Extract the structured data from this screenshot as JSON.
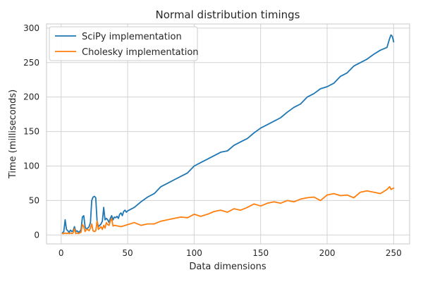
{
  "chart_data": {
    "type": "line",
    "title": "Normal distribution timings",
    "xlabel": "Data dimensions",
    "ylabel": "Time (milliseconds)",
    "xlim": [
      -11,
      262
    ],
    "ylim": [
      -13,
      306
    ],
    "xticks": [
      0,
      50,
      100,
      150,
      200,
      250
    ],
    "yticks": [
      0,
      50,
      100,
      150,
      200,
      250,
      300
    ],
    "grid": true,
    "legend_position": "top-left",
    "series": [
      {
        "name": "SciPy implementation",
        "color": "#1f77b4",
        "x": [
          1,
          2,
          3,
          4,
          5,
          6,
          7,
          8,
          9,
          10,
          11,
          12,
          13,
          14,
          15,
          16,
          17,
          18,
          19,
          20,
          21,
          22,
          23,
          24,
          25,
          26,
          27,
          28,
          29,
          30,
          31,
          32,
          33,
          34,
          35,
          36,
          37,
          38,
          39,
          40,
          41,
          42,
          43,
          44,
          45,
          46,
          47,
          48,
          49,
          50,
          55,
          60,
          65,
          70,
          75,
          80,
          85,
          90,
          95,
          100,
          105,
          110,
          115,
          120,
          125,
          130,
          135,
          140,
          145,
          150,
          155,
          160,
          165,
          170,
          175,
          180,
          185,
          190,
          195,
          200,
          205,
          210,
          215,
          220,
          225,
          230,
          235,
          240,
          245,
          247,
          248,
          249,
          250
        ],
        "values": [
          3,
          5,
          22,
          8,
          6,
          4,
          7,
          5,
          6,
          12,
          5,
          6,
          4,
          5,
          8,
          26,
          28,
          12,
          8,
          10,
          12,
          18,
          50,
          55,
          56,
          54,
          20,
          12,
          14,
          16,
          20,
          40,
          22,
          24,
          22,
          18,
          24,
          28,
          22,
          26,
          25,
          27,
          24,
          30,
          32,
          28,
          34,
          36,
          33,
          35,
          40,
          48,
          55,
          60,
          70,
          75,
          80,
          85,
          90,
          100,
          105,
          110,
          115,
          120,
          122,
          130,
          135,
          140,
          148,
          155,
          160,
          165,
          170,
          178,
          185,
          190,
          200,
          205,
          212,
          215,
          220,
          230,
          235,
          245,
          250,
          255,
          262,
          268,
          272,
          285,
          290,
          288,
          280
        ]
      },
      {
        "name": "Cholesky implementation",
        "color": "#ff7f0e",
        "x": [
          1,
          2,
          3,
          4,
          5,
          6,
          7,
          8,
          9,
          10,
          11,
          12,
          13,
          14,
          15,
          16,
          17,
          18,
          19,
          20,
          21,
          22,
          23,
          24,
          25,
          26,
          27,
          28,
          29,
          30,
          31,
          32,
          33,
          34,
          35,
          36,
          37,
          38,
          39,
          40,
          45,
          50,
          55,
          60,
          65,
          70,
          75,
          80,
          85,
          90,
          95,
          100,
          105,
          110,
          115,
          120,
          125,
          130,
          135,
          140,
          145,
          150,
          155,
          160,
          165,
          170,
          175,
          180,
          185,
          190,
          195,
          200,
          205,
          210,
          215,
          220,
          225,
          230,
          235,
          240,
          245,
          247,
          248,
          250
        ],
        "values": [
          2,
          2,
          3,
          2,
          3,
          2,
          3,
          2,
          3,
          9,
          2,
          3,
          2,
          3,
          4,
          15,
          12,
          5,
          8,
          8,
          6,
          10,
          16,
          6,
          5,
          6,
          20,
          8,
          10,
          12,
          8,
          14,
          10,
          18,
          15,
          14,
          20,
          24,
          13,
          14,
          12,
          15,
          18,
          14,
          16,
          16,
          20,
          22,
          24,
          26,
          25,
          30,
          27,
          30,
          34,
          36,
          33,
          38,
          36,
          40,
          45,
          42,
          46,
          48,
          46,
          50,
          48,
          52,
          54,
          55,
          50,
          58,
          60,
          57,
          58,
          54,
          62,
          64,
          62,
          60,
          66,
          70,
          66,
          68
        ]
      }
    ]
  }
}
